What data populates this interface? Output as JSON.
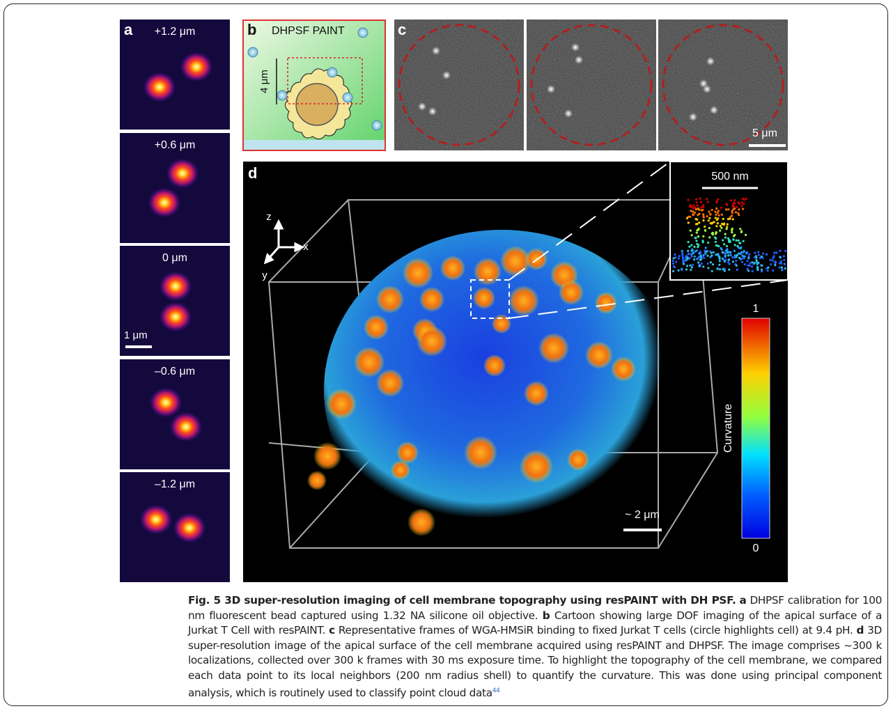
{
  "figure": {
    "panel_a": {
      "label": "a",
      "depths": [
        "+1.2 μm",
        "+0.6 μm",
        "0 μm",
        "–0.6 μm",
        "–1.2 μm"
      ],
      "scale_bar": "1 μm"
    },
    "panel_b": {
      "label": "b",
      "title": "DHPSF PAINT",
      "scale_bar": "4 μm"
    },
    "panel_c": {
      "label": "c",
      "scale_bar": "5 μm"
    },
    "panel_d": {
      "label": "d",
      "axes": [
        "z",
        "x",
        "y"
      ],
      "inset_scale_bar": "500 nm",
      "colorbar_max": "1",
      "colorbar_min": "0",
      "colorbar_label": "Curvature",
      "scale_bar": "~ 2 μm"
    }
  },
  "caption": {
    "title": "Fig. 5 3D super-resolution imaging of cell membrane topography using resPAINT with DH PSF.",
    "parts": [
      {
        "label": "a",
        "text": "DHPSF calibration for 100 nm fluorescent bead captured using 1.32 NA silicone oil objective."
      },
      {
        "label": "b",
        "text": "Cartoon showing large DOF imaging of the apical surface of a Jurkat T Cell with resPAINT."
      },
      {
        "label": "c",
        "text": "Representative frames of WGA-HMSiR binding to fixed Jurkat T cells (circle highlights cell) at 9.4 pH."
      },
      {
        "label": "d",
        "text": "3D super-resolution image of the apical surface of the cell membrane acquired using resPAINT and DHPSF. The image comprises ~300 k localizations, collected over 300 k frames with 30 ms exposure time. To highlight the topography of the cell membrane, we compared each data point to its local neighbors (200 nm radius shell) to quantify the curvature. This was done using principal component analysis, which is routinely used to classify point cloud data"
      }
    ],
    "ref": "44"
  }
}
